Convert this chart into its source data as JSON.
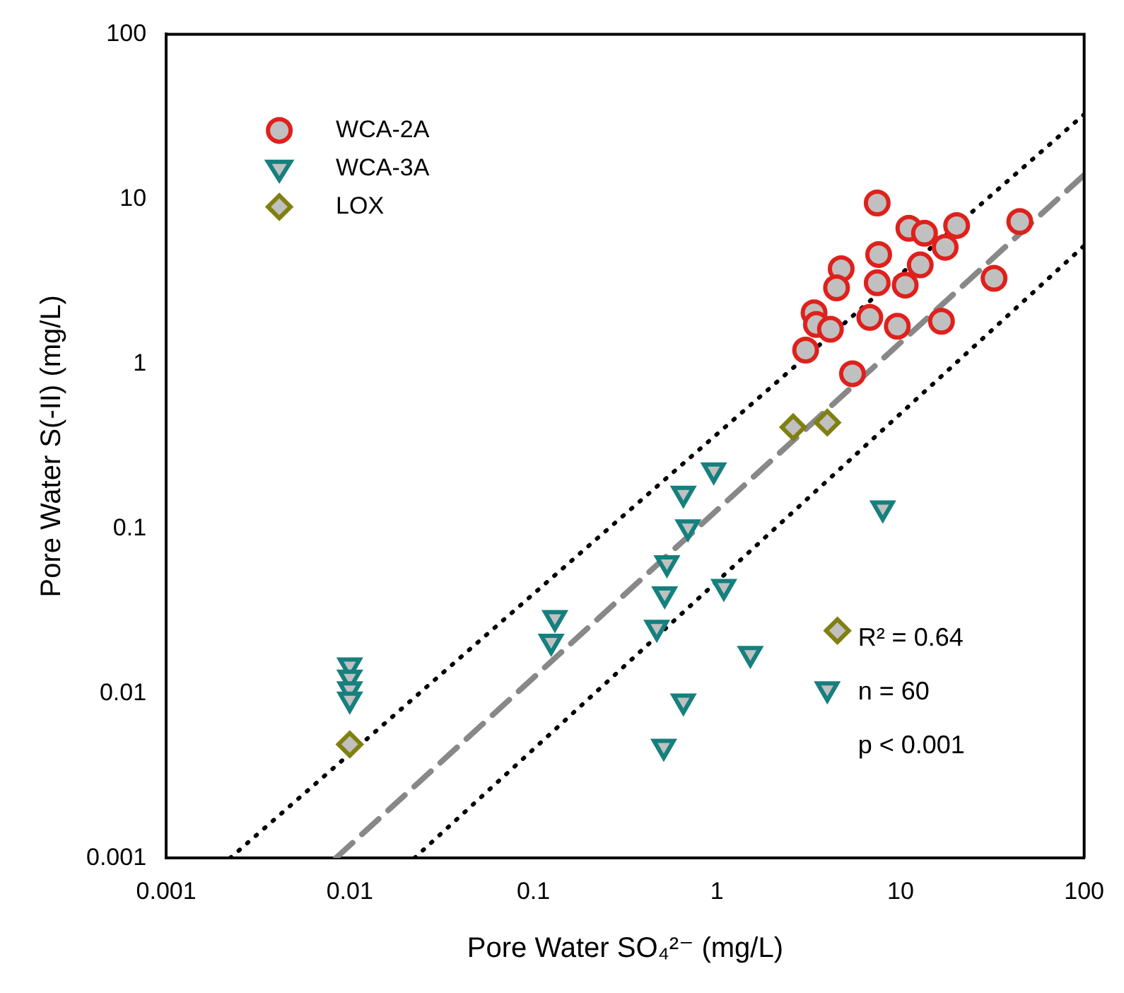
{
  "chart_data": {
    "type": "scatter",
    "xlabel": "Pore Water SO₄²⁻ (mg/L)",
    "ylabel": "Pore Water S(-II) (mg/L)",
    "log": "xy",
    "xlim": [
      0.001,
      100
    ],
    "ylim": [
      0.001,
      100
    ],
    "xticks": [
      0.001,
      0.01,
      0.1,
      1,
      10,
      100
    ],
    "yticks": [
      0.001,
      0.01,
      0.1,
      1,
      10,
      100
    ],
    "grid": false,
    "legend": "top left",
    "series": [
      {
        "name": "WCA-2A",
        "marker": "circle",
        "color": "#e0201c",
        "x": [
          7.46,
          11.1,
          13.5,
          20.2,
          44.6,
          17.5,
          12.8,
          7.6,
          4.75,
          4.48,
          7.46,
          10.6,
          32.3,
          3.38,
          3.48,
          4.15,
          6.8,
          9.6,
          16.7,
          3.04,
          5.47
        ],
        "values": [
          9.46,
          6.64,
          6.2,
          6.9,
          7.3,
          5.09,
          3.98,
          4.6,
          3.77,
          2.89,
          3.1,
          3.0,
          3.3,
          2.04,
          1.73,
          1.62,
          1.91,
          1.69,
          1.81,
          1.21,
          0.87
        ]
      },
      {
        "name": "WCA-3A",
        "marker": "triangle",
        "color": "#15807e",
        "x": [
          0.96,
          0.656,
          0.695,
          0.534,
          0.519,
          1.09,
          0.47,
          1.52,
          0.656,
          0.513,
          3.99,
          8.0,
          0.131,
          0.125,
          0.01,
          0.01,
          0.01,
          0.01
        ],
        "values": [
          0.226,
          0.163,
          0.102,
          0.0618,
          0.04,
          0.0444,
          0.0251,
          0.0174,
          0.00895,
          0.00475,
          0.0106,
          0.133,
          0.0287,
          0.0206,
          0.0148,
          0.0125,
          0.0106,
          0.0092
        ]
      },
      {
        "name": "LOX",
        "marker": "diamond",
        "color": "#808010",
        "x": [
          2.6,
          3.99,
          4.53,
          0.01
        ],
        "values": [
          0.412,
          0.44,
          0.024,
          0.0049
        ]
      },
      {
        "type": "line",
        "marker": "none",
        "line_style": "dashed",
        "color": "#888888",
        "x": [
          0.0084,
          100
        ],
        "values": [
          0.001,
          14
        ]
      },
      {
        "type": "line",
        "marker": "none",
        "line_style": "dotted",
        "color": "#000000",
        "x": [
          0.00223,
          100
        ],
        "values": [
          0.001,
          32.6
        ]
      },
      {
        "type": "line",
        "marker": "none",
        "line_style": "dotted",
        "color": "#000000",
        "x": [
          0.0225,
          100
        ],
        "values": [
          0.001,
          5.2
        ]
      }
    ],
    "annotations": [
      "R² = 0.64",
      "n = 60",
      "p < 0.001"
    ]
  }
}
